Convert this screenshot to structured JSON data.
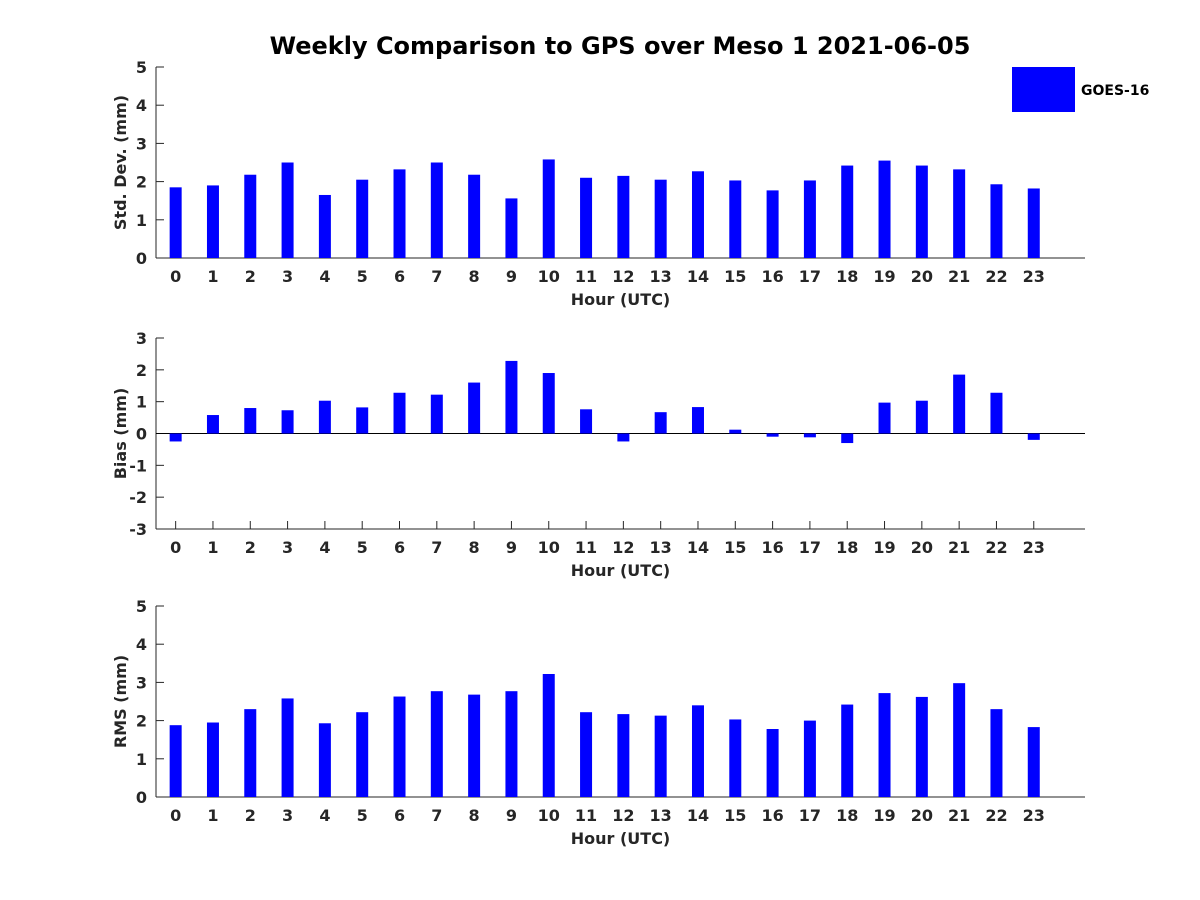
{
  "title": "Weekly Comparison to GPS over Meso 1 2021-06-05",
  "legend": {
    "label": "GOES-16",
    "color": "#0000ff"
  },
  "chart_data": [
    {
      "type": "bar",
      "name": "std-dev",
      "xlabel": "Hour (UTC)",
      "ylabel": "Std. Dev. (mm)",
      "ylim": [
        0,
        5
      ],
      "yticks": [
        0,
        1,
        2,
        3,
        4,
        5
      ],
      "categories": [
        "0",
        "1",
        "2",
        "3",
        "4",
        "5",
        "6",
        "7",
        "8",
        "9",
        "10",
        "11",
        "12",
        "13",
        "14",
        "15",
        "16",
        "17",
        "18",
        "19",
        "20",
        "21",
        "22",
        "23"
      ],
      "series": [
        {
          "name": "GOES-16",
          "values": [
            1.85,
            1.9,
            2.18,
            2.5,
            1.65,
            2.05,
            2.32,
            2.5,
            2.18,
            1.56,
            2.58,
            2.1,
            2.15,
            2.05,
            2.27,
            2.03,
            1.77,
            2.03,
            2.42,
            2.55,
            2.42,
            2.32,
            1.93,
            1.82
          ]
        }
      ]
    },
    {
      "type": "bar",
      "name": "bias",
      "xlabel": "Hour (UTC)",
      "ylabel": "Bias (mm)",
      "ylim": [
        -3,
        3
      ],
      "yticks": [
        -3,
        -2,
        -1,
        0,
        1,
        2,
        3
      ],
      "zero_line": true,
      "categories": [
        "0",
        "1",
        "2",
        "3",
        "4",
        "5",
        "6",
        "7",
        "8",
        "9",
        "10",
        "11",
        "12",
        "13",
        "14",
        "15",
        "16",
        "17",
        "18",
        "19",
        "20",
        "21",
        "22",
        "23"
      ],
      "series": [
        {
          "name": "GOES-16",
          "values": [
            -0.25,
            0.58,
            0.8,
            0.73,
            1.03,
            0.82,
            1.28,
            1.22,
            1.6,
            2.28,
            1.9,
            0.76,
            -0.25,
            0.67,
            0.83,
            0.12,
            -0.1,
            -0.12,
            -0.3,
            0.97,
            1.03,
            1.85,
            1.28,
            -0.2
          ]
        }
      ]
    },
    {
      "type": "bar",
      "name": "rms",
      "xlabel": "Hour (UTC)",
      "ylabel": "RMS (mm)",
      "ylim": [
        0,
        5
      ],
      "yticks": [
        0,
        1,
        2,
        3,
        4,
        5
      ],
      "categories": [
        "0",
        "1",
        "2",
        "3",
        "4",
        "5",
        "6",
        "7",
        "8",
        "9",
        "10",
        "11",
        "12",
        "13",
        "14",
        "15",
        "16",
        "17",
        "18",
        "19",
        "20",
        "21",
        "22",
        "23"
      ],
      "series": [
        {
          "name": "GOES-16",
          "values": [
            1.88,
            1.95,
            2.3,
            2.58,
            1.93,
            2.22,
            2.63,
            2.77,
            2.68,
            2.77,
            3.22,
            2.22,
            2.17,
            2.13,
            2.4,
            2.03,
            1.78,
            2.0,
            2.42,
            2.72,
            2.62,
            2.98,
            2.3,
            1.83
          ]
        }
      ]
    }
  ]
}
